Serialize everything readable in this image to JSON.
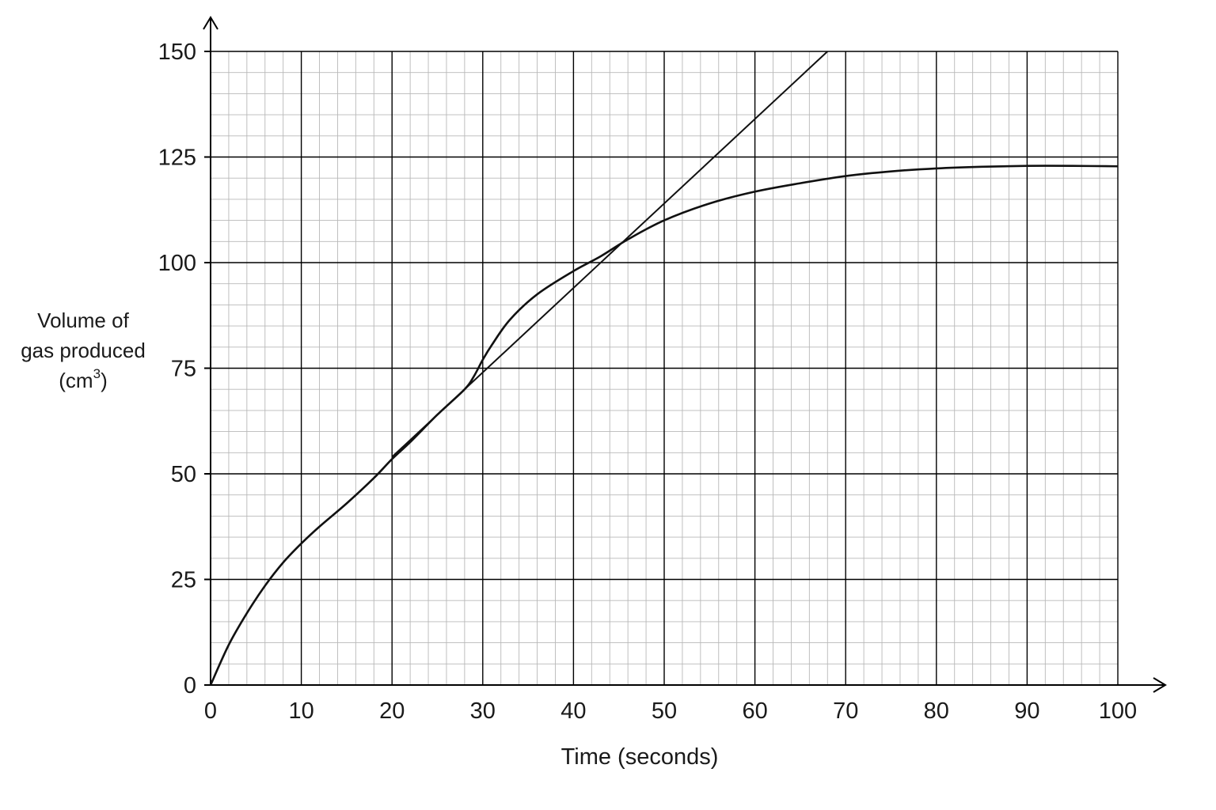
{
  "chart_data": {
    "type": "line",
    "xlabel": "Time (seconds)",
    "ylabel": {
      "line1": "Volume of",
      "line2": "gas produced",
      "unit_open": "(cm",
      "unit_sup": "3",
      "unit_close": ")"
    },
    "xlim": [
      0,
      100
    ],
    "ylim": [
      0,
      150
    ],
    "x_ticks": [
      0,
      10,
      20,
      30,
      40,
      50,
      60,
      70,
      80,
      90,
      100
    ],
    "y_ticks": [
      0,
      25,
      50,
      75,
      100,
      125,
      150
    ],
    "grid": true,
    "series": [
      {
        "kind": "curve",
        "x": [
          0,
          2,
          4,
          6,
          8,
          10,
          12,
          15,
          18,
          20,
          22,
          25,
          28,
          29,
          30,
          31,
          33,
          36,
          40,
          43,
          46,
          50,
          55,
          60,
          65,
          70,
          75,
          80,
          85,
          90,
          95,
          100
        ],
        "y": [
          0,
          9.5,
          17,
          23.5,
          29,
          33.5,
          37.5,
          43,
          49,
          53.5,
          57.5,
          64,
          70,
          73,
          77,
          80.5,
          86.5,
          92.5,
          98,
          101.5,
          105.5,
          110,
          114,
          116.8,
          118.8,
          120.5,
          121.6,
          122.3,
          122.7,
          122.9,
          122.9,
          122.8
        ]
      },
      {
        "kind": "tangent",
        "x": [
          20,
          68
        ],
        "y": [
          54,
          150
        ]
      }
    ],
    "colors": {
      "major_grid": "#000000",
      "minor_grid": "#b8b8b8",
      "line": "#111111"
    }
  }
}
